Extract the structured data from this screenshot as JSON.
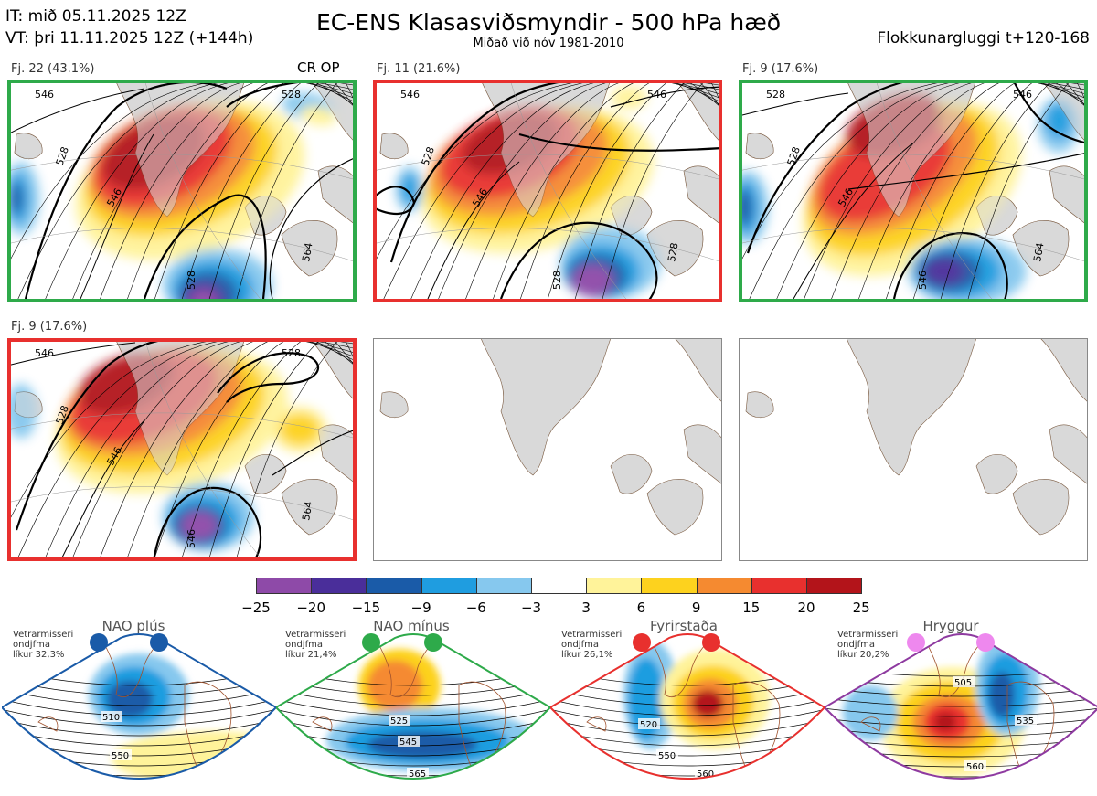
{
  "header": {
    "it_line": "IT: mið 05.11.2025 12Z",
    "vt_line": "VT: þri 11.11.2025 12Z  (+144h)",
    "title": "EC-ENS Klasasviðsmyndir - 500 hPa hæð",
    "subtitle": "Miðað við nóv 1981-2010",
    "window_label": "Flokkunargluggi t+120-168"
  },
  "panels": [
    {
      "label": "Fj. 22 (43.1%)",
      "badge": "CR OP",
      "frame_color": "#2eaa4a",
      "contours": [
        "528",
        "546",
        "528",
        "528",
        "564",
        "546"
      ]
    },
    {
      "label": "Fj. 11 (21.6%)",
      "badge": "",
      "frame_color": "#e8302e",
      "contours": [
        "528",
        "546",
        "528",
        "546",
        "528",
        "546"
      ]
    },
    {
      "label": "Fj. 9 (17.6%)",
      "badge": "",
      "frame_color": "#2eaa4a",
      "contours": [
        "528",
        "546",
        "546",
        "546",
        "564",
        "528"
      ]
    },
    {
      "label": "Fj. 9 (17.6%)",
      "badge": "",
      "frame_color": "#e8302e",
      "contours": [
        "528",
        "546",
        "546",
        "528",
        "564",
        "546"
      ]
    },
    {
      "label": "",
      "badge": "",
      "frame_color": "#888888",
      "contours": []
    },
    {
      "label": "",
      "badge": "",
      "frame_color": "#888888",
      "contours": []
    }
  ],
  "colorbar": {
    "ticks": [
      "−25",
      "−20",
      "−15",
      "−9",
      "−6",
      "−3",
      "3",
      "6",
      "9",
      "15",
      "20",
      "25"
    ],
    "colors": [
      "#8e4aa8",
      "#4a2e9a",
      "#1a5ba8",
      "#1f9de0",
      "#86c8ee",
      "#ffffff",
      "#fff39a",
      "#fdd21e",
      "#f58a30",
      "#e8302e",
      "#b3141a"
    ]
  },
  "regimes": [
    {
      "name": "NAO plús",
      "note": "Vetrarmisseri\nondjfma\nlíkur 32,3%",
      "frame_color": "#1a5ba8",
      "dot_color": "#1a5ba8",
      "contour_labels": [
        "510",
        "550"
      ]
    },
    {
      "name": "NAO mínus",
      "note": "Vetrarmisseri\nondjfma\nlíkur 21,4%",
      "frame_color": "#2eaa4a",
      "dot_color": "#2eaa4a",
      "contour_labels": [
        "525",
        "545",
        "565"
      ]
    },
    {
      "name": "Fyrirstaða",
      "note": "Vetrarmisseri\nondjfma\nlíkur 26,1%",
      "frame_color": "#e8302e",
      "dot_color": "#e8302e",
      "contour_labels": [
        "520",
        "550",
        "560"
      ]
    },
    {
      "name": "Hryggur",
      "note": "Vetrarmisseri\nondjfma\nlíkur 20,2%",
      "frame_color": "#8e3aa0",
      "dot_color": "#ee88ee",
      "contour_labels": [
        "505",
        "535",
        "560"
      ]
    }
  ]
}
